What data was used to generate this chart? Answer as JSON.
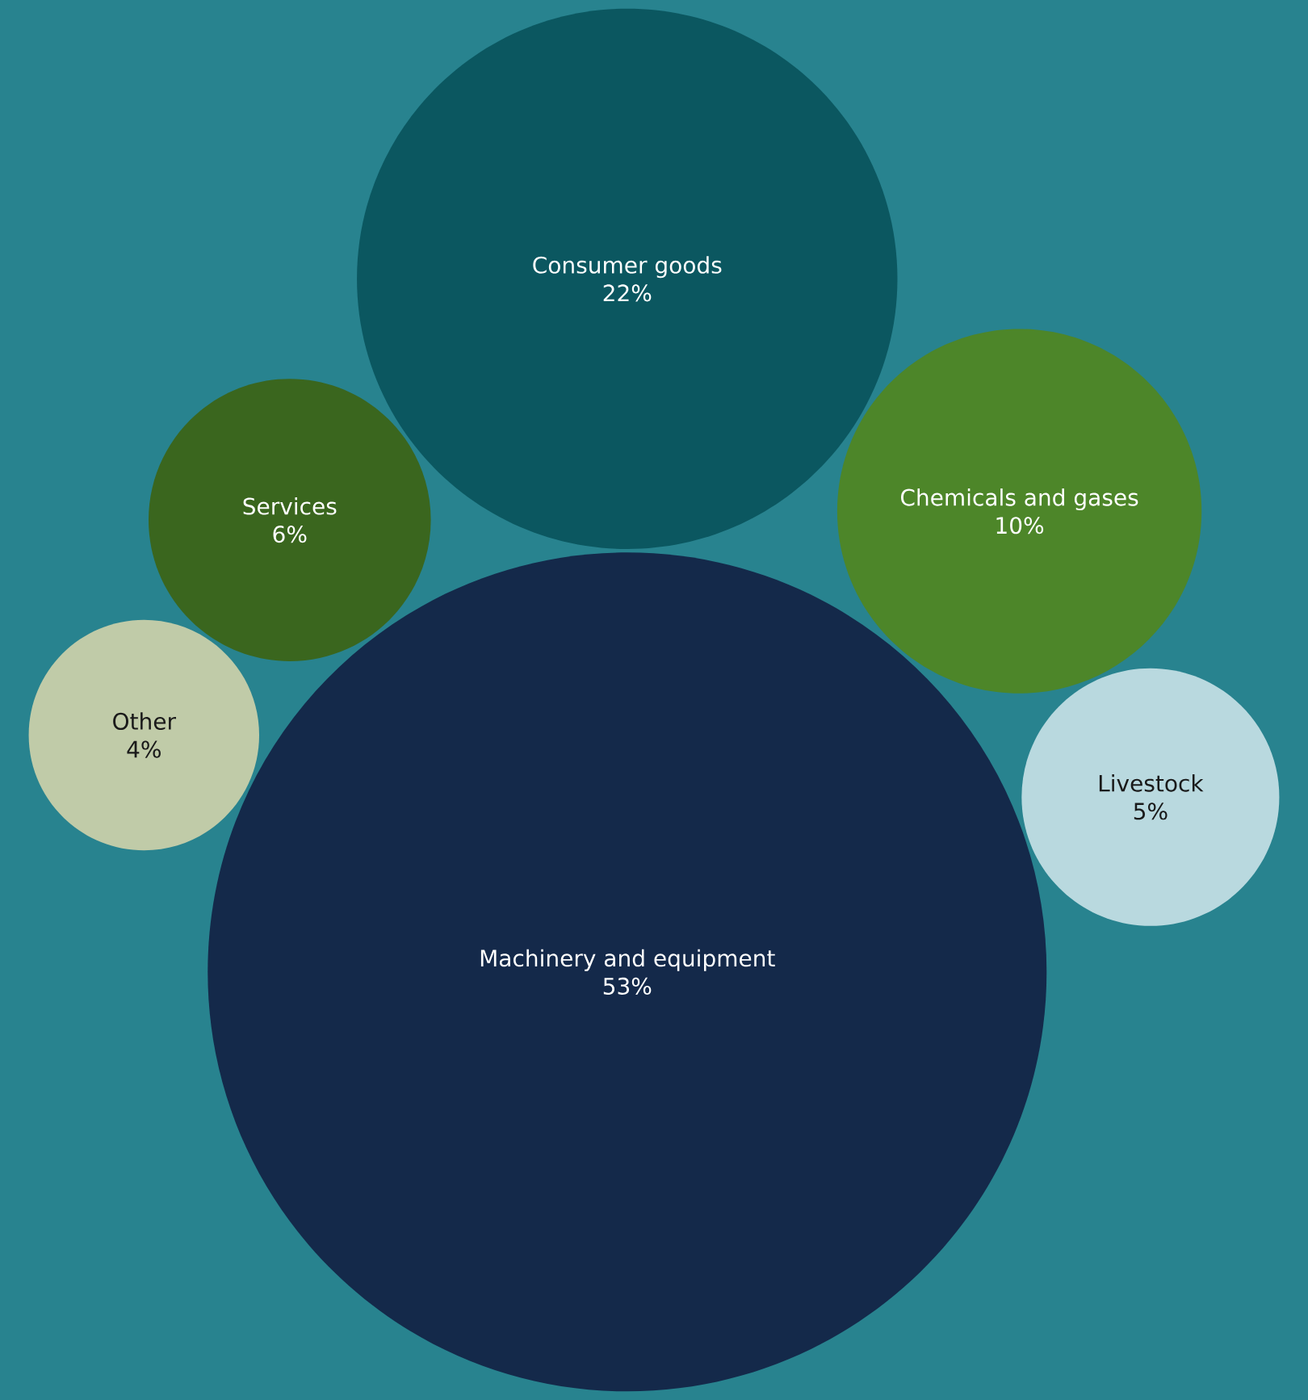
{
  "chart_data": {
    "type": "other",
    "categories": [
      "Other",
      "Services",
      "Consumer goods",
      "Livestock",
      "Chemicals and gases",
      "Machinery and equipment"
    ],
    "values": [
      4,
      6,
      22,
      5,
      10,
      53
    ],
    "value_labels": [
      "4%",
      "6%",
      "22%",
      "5%",
      "10%",
      "53%"
    ],
    "colors": [
      "#c0cba8",
      "#3a661e",
      "#0b5760",
      "#b9d9df",
      "#4d8629",
      "#14294a"
    ]
  }
}
